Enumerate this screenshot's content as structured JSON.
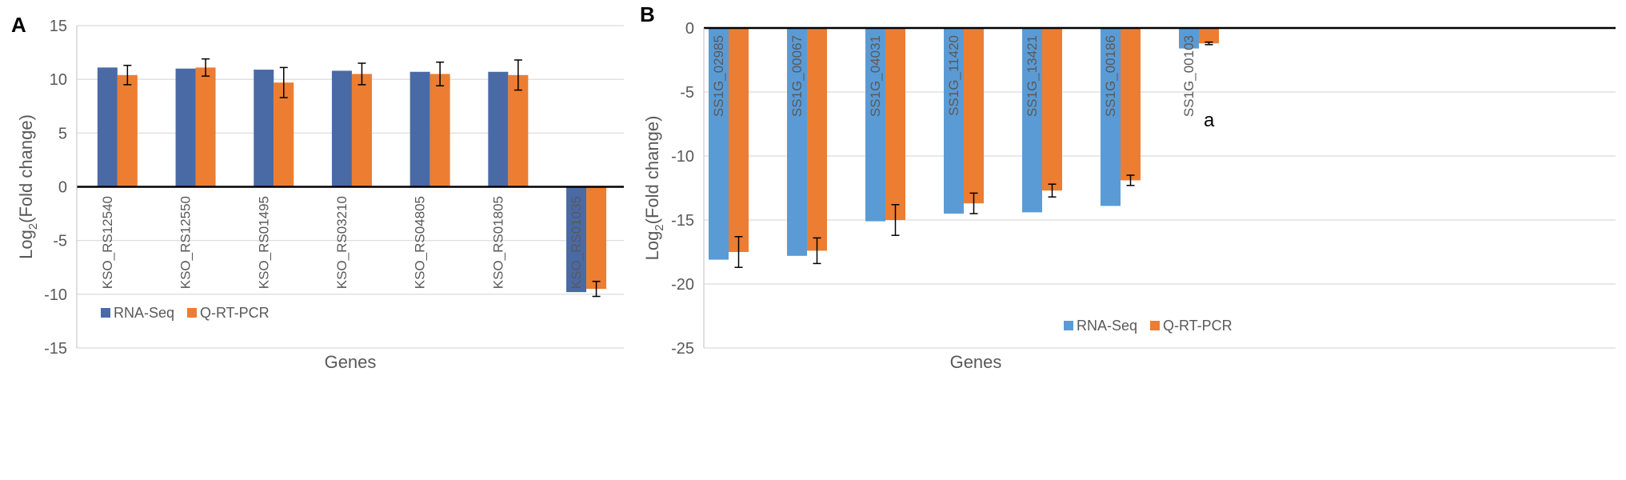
{
  "chart_data": [
    {
      "panel": "A",
      "type": "bar",
      "xlabel": "Genes",
      "ylabel": "Log2(Fold change)",
      "ylim": [
        -15,
        15
      ],
      "yticks": [
        15,
        10,
        5,
        0,
        -5,
        -10,
        -15
      ],
      "categories": [
        "KSO_RS12540",
        "KSO_RS12550",
        "KSO_RS01495",
        "KSO_RS03210",
        "KSO_RS04805",
        "KSO_RS01805",
        "KSO_RS01035"
      ],
      "series": [
        {
          "name": "RNA-Seq",
          "color": "#4a6aa6",
          "values": [
            11.1,
            11.0,
            10.9,
            10.8,
            10.7,
            10.7,
            -9.8
          ]
        },
        {
          "name": "Q-RT-PCR",
          "color": "#ed7d31",
          "values": [
            10.4,
            11.1,
            9.7,
            10.5,
            10.5,
            10.4,
            -9.5
          ],
          "errors": [
            0.9,
            0.8,
            1.4,
            1.0,
            1.1,
            1.4,
            0.7
          ]
        }
      ],
      "legend_position": "bottom-left"
    },
    {
      "panel": "B",
      "type": "bar",
      "xlabel": "Genes",
      "ylabel": "Log2(Fold change)",
      "ylim": [
        -25,
        0
      ],
      "yticks": [
        0,
        -5,
        -10,
        -15,
        -20,
        -25
      ],
      "categories": [
        "SS1G_02985",
        "SS1G_00067",
        "SS1G_04031",
        "SS1G_11420",
        "SS1G_13421",
        "SS1G_00186",
        "SS1G_00103"
      ],
      "series": [
        {
          "name": "RNA-Seq",
          "color": "#5b9bd5",
          "values": [
            -18.1,
            -17.8,
            -15.1,
            -14.5,
            -14.4,
            -13.9,
            -1.6
          ]
        },
        {
          "name": "Q-RT-PCR",
          "color": "#ed7d31",
          "values": [
            -17.5,
            -17.4,
            -15.0,
            -13.7,
            -12.7,
            -11.9,
            -1.2
          ],
          "errors": [
            1.2,
            1.0,
            1.2,
            0.8,
            0.5,
            0.4,
            0.1
          ]
        }
      ],
      "annotations": [
        {
          "category": "SS1G_00103",
          "text": "a"
        }
      ],
      "legend_position": "bottom-right"
    }
  ]
}
